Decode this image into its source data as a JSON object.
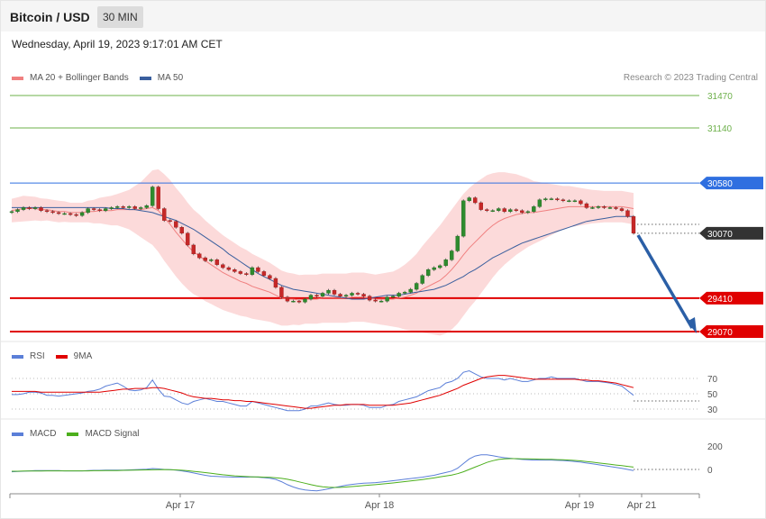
{
  "header": {
    "title": "Bitcoin / USD",
    "timeframe": "30 MIN",
    "datetime": "Wednesday, April 19, 2023 9:17:01 AM CET"
  },
  "legend": {
    "main": [
      {
        "label": "MA 20 + Bollinger Bands",
        "color": "#f08080"
      },
      {
        "label": "MA 50",
        "color": "#3a5f9e"
      }
    ],
    "rsi": [
      {
        "label": "RSI",
        "color": "#5b7fd8"
      },
      {
        "label": "9MA",
        "color": "#e00000"
      }
    ],
    "macd": [
      {
        "label": "MACD",
        "color": "#5b7fd8"
      },
      {
        "label": "MACD Signal",
        "color": "#4caf1c"
      }
    ]
  },
  "credit": "Research © 2023 Trading Central",
  "chart_data": [
    {
      "type": "candlestick",
      "levels": [
        {
          "value": 31470,
          "label": "31470",
          "style": "target",
          "color": "#6db04a"
        },
        {
          "value": 31140,
          "label": "31140",
          "style": "target",
          "color": "#6db04a"
        },
        {
          "value": 30580,
          "label": "30580",
          "style": "resistance",
          "color": "#2f6fe0"
        },
        {
          "value": 30070,
          "label": "30070",
          "style": "last",
          "color": "#333333"
        },
        {
          "value": 29410,
          "label": "29410",
          "style": "support",
          "color": "#e00000"
        },
        {
          "value": 29070,
          "label": "29070",
          "style": "support",
          "color": "#e00000"
        }
      ],
      "x_ticks": [
        "Apr 17",
        "Apr 18",
        "Apr 19",
        "Apr 21"
      ],
      "close": [
        30290,
        30310,
        30330,
        30320,
        30330,
        30300,
        30290,
        30280,
        30270,
        30270,
        30260,
        30250,
        30280,
        30320,
        30310,
        30300,
        30320,
        30330,
        30340,
        30330,
        30340,
        30320,
        30330,
        30350,
        30540,
        30320,
        30200,
        30190,
        30130,
        30070,
        29950,
        29860,
        29820,
        29790,
        29800,
        29750,
        29720,
        29700,
        29680,
        29660,
        29650,
        29720,
        29680,
        29640,
        29610,
        29520,
        29420,
        29380,
        29380,
        29370,
        29400,
        29440,
        29430,
        29460,
        29490,
        29450,
        29430,
        29440,
        29460,
        29450,
        29430,
        29390,
        29380,
        29380,
        29420,
        29430,
        29460,
        29470,
        29500,
        29560,
        29640,
        29700,
        29720,
        29740,
        29800,
        29890,
        30040,
        30400,
        30430,
        30380,
        30310,
        30300,
        30300,
        30320,
        30290,
        30310,
        30300,
        30280,
        30290,
        30340,
        30410,
        30420,
        30420,
        30410,
        30400,
        30400,
        30400,
        30370,
        30330,
        30330,
        30340,
        30330,
        30330,
        30320,
        30300,
        30240,
        30070
      ],
      "ma20": [
        30300,
        30310,
        30320,
        30320,
        30320,
        30310,
        30310,
        30300,
        30290,
        30290,
        30280,
        30280,
        30280,
        30290,
        30290,
        30300,
        30300,
        30300,
        30310,
        30310,
        30310,
        30310,
        30310,
        30320,
        30330,
        30300,
        30230,
        30160,
        30080,
        30010,
        29940,
        29880,
        29840,
        29790,
        29750,
        29710,
        29670,
        29640,
        29610,
        29580,
        29560,
        29530,
        29510,
        29490,
        29470,
        29440,
        29410,
        29400,
        29400,
        29390,
        29400,
        29400,
        29400,
        29410,
        29410,
        29410,
        29410,
        29410,
        29420,
        29420,
        29420,
        29410,
        29400,
        29400,
        29400,
        29400,
        29410,
        29420,
        29440,
        29460,
        29500,
        29530,
        29560,
        29590,
        29640,
        29700,
        29770,
        29850,
        29920,
        29980,
        30040,
        30100,
        30150,
        30190,
        30220,
        30240,
        30260,
        30270,
        30280,
        30280,
        30290,
        30300,
        30310,
        30320,
        30330,
        30340,
        30340,
        30340,
        30340,
        30340,
        30340,
        30340,
        30340,
        30340,
        30340,
        30330,
        30320
      ],
      "bb_width": [
        120,
        125,
        130,
        125,
        120,
        115,
        110,
        110,
        110,
        105,
        100,
        100,
        100,
        110,
        120,
        130,
        140,
        150,
        160,
        180,
        200,
        240,
        280,
        330,
        380,
        420,
        440,
        450,
        450,
        450,
        440,
        430,
        420,
        410,
        400,
        390,
        380,
        370,
        360,
        350,
        340,
        330,
        320,
        310,
        300,
        290,
        280,
        270,
        260,
        255,
        250,
        250,
        250,
        250,
        250,
        250,
        250,
        250,
        250,
        250,
        250,
        250,
        250,
        260,
        270,
        280,
        300,
        330,
        360,
        400,
        440,
        480,
        520,
        560,
        590,
        610,
        620,
        620,
        610,
        600,
        580,
        560,
        530,
        500,
        470,
        440,
        410,
        380,
        350,
        320,
        300,
        280,
        260,
        240,
        220,
        210,
        200,
        190,
        180,
        170,
        165,
        160,
        160,
        160,
        160,
        160,
        160
      ],
      "ma50": [
        30330,
        30330,
        30330,
        30330,
        30330,
        30330,
        30330,
        30330,
        30330,
        30330,
        30330,
        30330,
        30330,
        30330,
        30330,
        30330,
        30330,
        30320,
        30320,
        30320,
        30310,
        30310,
        30300,
        30290,
        30280,
        30260,
        30240,
        30220,
        30200,
        30170,
        30140,
        30110,
        30070,
        30030,
        29990,
        29950,
        29910,
        29860,
        29820,
        29780,
        29740,
        29700,
        29660,
        29630,
        29600,
        29570,
        29540,
        29520,
        29500,
        29490,
        29480,
        29470,
        29460,
        29450,
        29440,
        29430,
        29420,
        29410,
        29400,
        29400,
        29400,
        29410,
        29420,
        29430,
        29440,
        29440,
        29440,
        29450,
        29460,
        29470,
        29480,
        29490,
        29500,
        29520,
        29540,
        29570,
        29600,
        29630,
        29670,
        29700,
        29740,
        29780,
        29820,
        29850,
        29880,
        29910,
        29940,
        29970,
        29990,
        30010,
        30030,
        30050,
        30070,
        30090,
        30110,
        30130,
        30150,
        30170,
        30190,
        30200,
        30210,
        30220,
        30230,
        30240,
        30240,
        30240,
        30240
      ]
    },
    {
      "type": "line",
      "name": "RSI",
      "y_ticks": [
        70,
        50,
        30
      ],
      "series": [
        {
          "name": "RSI",
          "values": [
            49,
            49,
            50,
            52,
            52,
            51,
            48,
            48,
            47,
            48,
            49,
            50,
            51,
            53,
            54,
            56,
            60,
            62,
            64,
            60,
            55,
            54,
            55,
            58,
            68,
            56,
            47,
            46,
            42,
            38,
            36,
            40,
            42,
            44,
            42,
            40,
            40,
            38,
            36,
            34,
            34,
            40,
            38,
            36,
            34,
            32,
            30,
            28,
            28,
            28,
            30,
            34,
            34,
            36,
            38,
            36,
            35,
            35,
            36,
            36,
            35,
            32,
            32,
            32,
            35,
            36,
            40,
            42,
            44,
            46,
            50,
            54,
            56,
            58,
            64,
            66,
            70,
            78,
            80,
            76,
            72,
            70,
            70,
            70,
            68,
            70,
            68,
            66,
            66,
            68,
            70,
            70,
            72,
            70,
            70,
            70,
            70,
            68,
            66,
            66,
            66,
            65,
            64,
            62,
            60,
            54,
            48
          ]
        },
        {
          "name": "9MA",
          "values": [
            53,
            53,
            53,
            53,
            53,
            52,
            52,
            52,
            52,
            52,
            52,
            52,
            52,
            52,
            52,
            52,
            53,
            54,
            55,
            56,
            56,
            57,
            57,
            57,
            58,
            58,
            57,
            55,
            53,
            51,
            48,
            46,
            45,
            44,
            44,
            43,
            42,
            42,
            41,
            41,
            40,
            40,
            39,
            38,
            37,
            36,
            35,
            34,
            33,
            32,
            31,
            31,
            32,
            33,
            34,
            35,
            35,
            36,
            36,
            36,
            36,
            35,
            35,
            35,
            35,
            35,
            36,
            37,
            38,
            40,
            42,
            44,
            46,
            48,
            51,
            54,
            57,
            61,
            64,
            67,
            70,
            72,
            73,
            74,
            74,
            73,
            72,
            71,
            70,
            69,
            69,
            69,
            69,
            69,
            69,
            69,
            69,
            68,
            68,
            67,
            67,
            66,
            65,
            64,
            62,
            60,
            58
          ]
        }
      ]
    },
    {
      "type": "line",
      "name": "MACD",
      "y_ticks": [
        200,
        0
      ],
      "series": [
        {
          "name": "MACD",
          "values": [
            -20,
            -18,
            -15,
            -12,
            -10,
            -10,
            -10,
            -10,
            -10,
            -12,
            -12,
            -12,
            -12,
            -10,
            -8,
            -8,
            -6,
            -6,
            -6,
            -6,
            -4,
            -2,
            0,
            2,
            8,
            5,
            0,
            -2,
            -6,
            -12,
            -20,
            -30,
            -40,
            -50,
            -58,
            -60,
            -62,
            -64,
            -66,
            -66,
            -66,
            -64,
            -66,
            -70,
            -75,
            -85,
            -105,
            -130,
            -150,
            -165,
            -175,
            -180,
            -182,
            -175,
            -165,
            -155,
            -145,
            -135,
            -128,
            -122,
            -118,
            -115,
            -112,
            -108,
            -102,
            -96,
            -90,
            -84,
            -78,
            -72,
            -66,
            -58,
            -50,
            -38,
            -26,
            -14,
            10,
            50,
            90,
            115,
            125,
            125,
            118,
            108,
            100,
            95,
            90,
            85,
            82,
            80,
            80,
            80,
            80,
            78,
            76,
            72,
            68,
            62,
            55,
            48,
            40,
            32,
            25,
            18,
            10,
            0,
            -10
          ]
        },
        {
          "name": "MACD Signal",
          "values": [
            -15,
            -15,
            -14,
            -14,
            -13,
            -13,
            -12,
            -12,
            -12,
            -12,
            -12,
            -12,
            -12,
            -12,
            -11,
            -11,
            -10,
            -10,
            -9,
            -8,
            -7,
            -6,
            -5,
            -4,
            -3,
            -2,
            -1,
            -2,
            -4,
            -7,
            -11,
            -16,
            -21,
            -27,
            -33,
            -39,
            -45,
            -50,
            -55,
            -58,
            -61,
            -63,
            -64,
            -66,
            -68,
            -71,
            -76,
            -84,
            -94,
            -106,
            -118,
            -130,
            -140,
            -148,
            -152,
            -154,
            -153,
            -150,
            -146,
            -142,
            -138,
            -134,
            -130,
            -125,
            -120,
            -115,
            -110,
            -104,
            -98,
            -92,
            -86,
            -79,
            -72,
            -64,
            -56,
            -48,
            -36,
            -20,
            0,
            20,
            40,
            60,
            75,
            85,
            90,
            92,
            92,
            91,
            90,
            89,
            88,
            87,
            86,
            84,
            82,
            80,
            77,
            73,
            68,
            62,
            56,
            50,
            44,
            38,
            32,
            26,
            20
          ]
        }
      ]
    }
  ]
}
